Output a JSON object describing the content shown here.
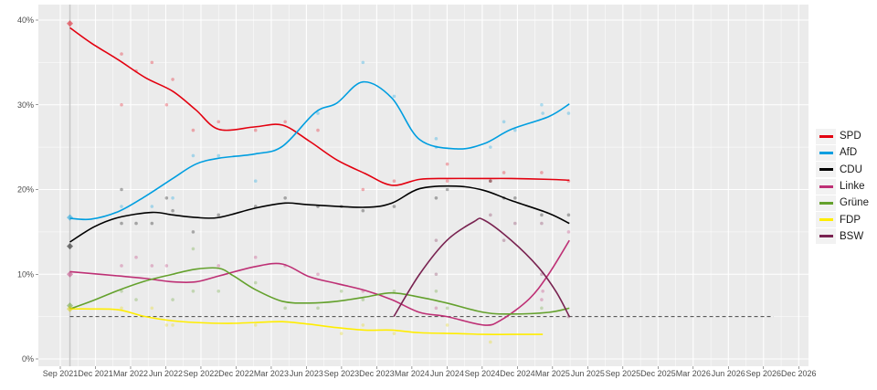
{
  "chart_data": {
    "type": "line",
    "title": "",
    "xlabel": "",
    "ylabel": "",
    "ylim": [
      0,
      40
    ],
    "y_ticks": [
      "0%",
      "10%",
      "20%",
      "30%",
      "40%"
    ],
    "x_ticks": [
      "Sep 2021",
      "Dec 2021",
      "Mar 2022",
      "Jun 2022",
      "Sep 2022",
      "Dec 2022",
      "Mar 2023",
      "Jun 2023",
      "Sep 2023",
      "Dec 2023",
      "Mar 2024",
      "Jun 2024",
      "Sep 2024",
      "Dec 2024",
      "Mar 2025",
      "Jun 2025",
      "Sep 2025",
      "Dec 2025",
      "Mar 2026",
      "Jun 2026",
      "Sep 2026",
      "Dec 2026"
    ],
    "xlim": [
      "2021-08-07",
      "2027-01-10"
    ],
    "grid": true,
    "legend_position": "right",
    "election_marker_date": "2021-09-26",
    "threshold": {
      "value": 5,
      "from": "2021-09-26",
      "to": "2026-09-27",
      "style": "dashed"
    },
    "series": [
      {
        "name": "SPD",
        "color": "#e3000f",
        "election_result": 39.6,
        "trend": [
          [
            "2021-09-26",
            39.1
          ],
          [
            "2021-11-20",
            37.3
          ],
          [
            "2022-01-30",
            35.3
          ],
          [
            "2022-04-10",
            33.2
          ],
          [
            "2022-06-20",
            31.6
          ],
          [
            "2022-08-19",
            29.4
          ],
          [
            "2022-10-18",
            27.1
          ],
          [
            "2023-01-20",
            27.4
          ],
          [
            "2023-04-01",
            27.6
          ],
          [
            "2023-06-10",
            25.7
          ],
          [
            "2023-08-20",
            23.5
          ],
          [
            "2023-11-01",
            21.9
          ],
          [
            "2024-01-10",
            20.5
          ],
          [
            "2024-03-22",
            21.2
          ],
          [
            "2024-06-01",
            21.3
          ],
          [
            "2024-09-05",
            21.3
          ],
          [
            "2024-11-15",
            21.3
          ],
          [
            "2025-02-20",
            21.2
          ],
          [
            "2025-04-15",
            21.1
          ]
        ],
        "polls": [
          [
            "2022-02-07",
            36
          ],
          [
            "2022-03-17",
            34
          ],
          [
            "2022-04-27",
            35
          ],
          [
            "2022-06-20",
            33
          ],
          [
            "2022-02-07",
            30
          ],
          [
            "2022-06-04",
            30
          ],
          [
            "2022-08-12",
            27
          ],
          [
            "2022-10-17",
            28
          ],
          [
            "2023-01-21",
            27
          ],
          [
            "2023-04-08",
            28
          ],
          [
            "2023-07-02",
            27
          ],
          [
            "2023-10-27",
            20
          ],
          [
            "2024-01-16",
            21
          ],
          [
            "2024-06-02",
            23
          ],
          [
            "2024-06-02",
            21
          ],
          [
            "2024-09-22",
            21
          ],
          [
            "2024-10-27",
            22
          ],
          [
            "2025-02-02",
            22
          ],
          [
            "2025-04-13",
            21
          ]
        ]
      },
      {
        "name": "AfD",
        "color": "#009ee0",
        "election_result": 16.7,
        "trend": [
          [
            "2021-09-26",
            16.6
          ],
          [
            "2021-11-20",
            16.5
          ],
          [
            "2022-01-30",
            17.4
          ],
          [
            "2022-04-10",
            19.2
          ],
          [
            "2022-06-20",
            21.3
          ],
          [
            "2022-08-19",
            23.0
          ],
          [
            "2022-10-18",
            23.7
          ],
          [
            "2023-01-20",
            24.2
          ],
          [
            "2023-04-01",
            25.1
          ],
          [
            "2023-06-25",
            29.1
          ],
          [
            "2023-08-20",
            30.2
          ],
          [
            "2023-10-27",
            32.7
          ],
          [
            "2024-01-10",
            30.8
          ],
          [
            "2024-03-22",
            25.9
          ],
          [
            "2024-06-25",
            24.8
          ],
          [
            "2024-09-05",
            25.4
          ],
          [
            "2024-11-15",
            27.1
          ],
          [
            "2025-02-20",
            28.6
          ],
          [
            "2025-04-15",
            30.1
          ]
        ],
        "polls": [
          [
            "2022-02-07",
            18
          ],
          [
            "2022-04-27",
            18
          ],
          [
            "2022-06-20",
            19
          ],
          [
            "2022-08-12",
            24
          ],
          [
            "2022-10-17",
            24
          ],
          [
            "2023-01-21",
            21
          ],
          [
            "2023-07-02",
            29
          ],
          [
            "2023-10-27",
            35
          ],
          [
            "2024-01-16",
            31
          ],
          [
            "2024-05-04",
            26
          ],
          [
            "2024-05-04",
            25
          ],
          [
            "2024-09-22",
            25
          ],
          [
            "2024-10-27",
            28
          ],
          [
            "2024-11-25",
            27
          ],
          [
            "2025-02-02",
            30
          ],
          [
            "2025-02-05",
            29
          ],
          [
            "2025-04-13",
            29
          ]
        ]
      },
      {
        "name": "CDU",
        "color": "#000000",
        "election_result": 13.3,
        "trend": [
          [
            "2021-09-26",
            13.8
          ],
          [
            "2021-11-28",
            15.6
          ],
          [
            "2022-01-30",
            16.7
          ],
          [
            "2022-04-27",
            17.3
          ],
          [
            "2022-06-20",
            17.0
          ],
          [
            "2022-08-19",
            16.7
          ],
          [
            "2022-10-18",
            16.7
          ],
          [
            "2023-01-20",
            17.8
          ],
          [
            "2023-04-08",
            18.4
          ],
          [
            "2023-06-10",
            18.2
          ],
          [
            "2023-11-01",
            17.9
          ],
          [
            "2024-01-10",
            18.4
          ],
          [
            "2024-03-22",
            20.1
          ],
          [
            "2024-06-25",
            20.4
          ],
          [
            "2024-09-05",
            19.9
          ],
          [
            "2024-11-15",
            18.7
          ],
          [
            "2025-02-20",
            17.2
          ],
          [
            "2025-04-15",
            16.0
          ]
        ],
        "polls": [
          [
            "2022-02-07",
            20
          ],
          [
            "2022-02-07",
            16
          ],
          [
            "2022-03-17",
            16
          ],
          [
            "2022-04-27",
            16
          ],
          [
            "2022-06-04",
            19
          ],
          [
            "2022-06-20",
            17.5
          ],
          [
            "2022-08-12",
            15
          ],
          [
            "2022-10-17",
            17
          ],
          [
            "2023-01-21",
            18
          ],
          [
            "2023-04-08",
            19
          ],
          [
            "2023-07-02",
            18
          ],
          [
            "2023-09-01",
            18
          ],
          [
            "2023-10-27",
            17.5
          ],
          [
            "2024-01-16",
            18
          ],
          [
            "2024-05-04",
            19
          ],
          [
            "2024-06-02",
            20
          ],
          [
            "2024-09-22",
            21
          ],
          [
            "2024-10-27",
            19
          ],
          [
            "2024-11-25",
            19
          ],
          [
            "2025-02-02",
            17
          ],
          [
            "2025-04-13",
            17
          ]
        ]
      },
      {
        "name": "Linke",
        "color": "#be3075",
        "election_result": 10.0,
        "trend": [
          [
            "2021-09-26",
            10.3
          ],
          [
            "2022-01-30",
            9.8
          ],
          [
            "2022-04-10",
            9.5
          ],
          [
            "2022-06-20",
            9.1
          ],
          [
            "2022-08-19",
            9.1
          ],
          [
            "2022-10-18",
            9.8
          ],
          [
            "2023-01-20",
            10.9
          ],
          [
            "2023-04-01",
            11.2
          ],
          [
            "2023-06-10",
            9.7
          ],
          [
            "2023-08-20",
            8.9
          ],
          [
            "2023-11-01",
            8.1
          ],
          [
            "2024-01-10",
            7.0
          ],
          [
            "2024-03-22",
            5.5
          ],
          [
            "2024-06-01",
            5.0
          ],
          [
            "2024-09-05",
            4.0
          ],
          [
            "2024-10-20",
            4.6
          ],
          [
            "2025-01-01",
            7.1
          ],
          [
            "2025-02-20",
            10.0
          ],
          [
            "2025-04-15",
            14.0
          ]
        ],
        "polls": [
          [
            "2022-02-07",
            11
          ],
          [
            "2022-03-17",
            12
          ],
          [
            "2022-04-27",
            11
          ],
          [
            "2022-06-04",
            11
          ],
          [
            "2022-10-17",
            11
          ],
          [
            "2023-01-21",
            12
          ],
          [
            "2023-04-08",
            11
          ],
          [
            "2023-07-02",
            10
          ],
          [
            "2023-10-27",
            8
          ],
          [
            "2024-05-04",
            6
          ],
          [
            "2025-02-02",
            7
          ],
          [
            "2025-02-05",
            8
          ],
          [
            "2025-04-13",
            15
          ]
        ]
      },
      {
        "name": "Grüne",
        "color": "#64a12d",
        "election_result": 6.3,
        "trend": [
          [
            "2021-09-26",
            5.9
          ],
          [
            "2021-11-20",
            6.8
          ],
          [
            "2022-01-30",
            8.1
          ],
          [
            "2022-04-10",
            9.2
          ],
          [
            "2022-06-20",
            10.0
          ],
          [
            "2022-08-19",
            10.6
          ],
          [
            "2022-10-18",
            10.7
          ],
          [
            "2022-11-25",
            9.8
          ],
          [
            "2023-01-20",
            8.2
          ],
          [
            "2023-04-01",
            6.8
          ],
          [
            "2023-06-10",
            6.6
          ],
          [
            "2023-08-20",
            6.8
          ],
          [
            "2023-11-01",
            7.3
          ],
          [
            "2024-01-10",
            7.8
          ],
          [
            "2024-03-22",
            7.3
          ],
          [
            "2024-06-01",
            6.6
          ],
          [
            "2024-09-05",
            5.5
          ],
          [
            "2024-11-15",
            5.3
          ],
          [
            "2025-02-20",
            5.5
          ],
          [
            "2025-04-15",
            6.0
          ]
        ],
        "polls": [
          [
            "2022-02-07",
            8
          ],
          [
            "2022-03-17",
            7
          ],
          [
            "2022-06-20",
            7
          ],
          [
            "2022-08-12",
            8
          ],
          [
            "2022-08-12",
            13
          ],
          [
            "2022-10-17",
            8
          ],
          [
            "2023-01-21",
            9
          ],
          [
            "2023-04-08",
            6
          ],
          [
            "2023-07-02",
            6
          ],
          [
            "2023-09-01",
            8
          ],
          [
            "2023-10-27",
            7
          ],
          [
            "2024-01-16",
            8
          ],
          [
            "2024-05-04",
            8
          ],
          [
            "2024-06-02",
            6
          ],
          [
            "2025-02-02",
            6
          ]
        ]
      },
      {
        "name": "FDP",
        "color": "#ffed00",
        "election_result": 5.9,
        "trend": [
          [
            "2021-09-26",
            5.9
          ],
          [
            "2021-11-20",
            5.9
          ],
          [
            "2022-01-30",
            5.8
          ],
          [
            "2022-04-10",
            5.0
          ],
          [
            "2022-06-20",
            4.5
          ],
          [
            "2022-08-19",
            4.3
          ],
          [
            "2022-11-10",
            4.2
          ],
          [
            "2023-01-20",
            4.3
          ],
          [
            "2023-04-01",
            4.4
          ],
          [
            "2023-06-10",
            4.1
          ],
          [
            "2023-08-20",
            3.7
          ],
          [
            "2023-11-01",
            3.4
          ],
          [
            "2024-01-10",
            3.4
          ],
          [
            "2024-03-22",
            3.1
          ],
          [
            "2024-06-25",
            3.0
          ],
          [
            "2024-09-05",
            2.9
          ],
          [
            "2024-11-15",
            2.9
          ],
          [
            "2025-02-05",
            2.9
          ]
        ],
        "polls": [
          [
            "2022-02-07",
            6
          ],
          [
            "2022-04-27",
            6
          ],
          [
            "2022-06-04",
            4
          ],
          [
            "2022-06-20",
            4
          ],
          [
            "2023-01-21",
            4
          ],
          [
            "2023-09-01",
            3
          ],
          [
            "2023-10-27",
            4
          ],
          [
            "2024-01-16",
            3
          ],
          [
            "2024-06-02",
            4
          ],
          [
            "2024-09-22",
            2
          ]
        ]
      },
      {
        "name": "BSW",
        "color": "#792351",
        "trend": [
          [
            "2024-01-15",
            5.0
          ],
          [
            "2024-03-22",
            10.0
          ],
          [
            "2024-06-01",
            14.0
          ],
          [
            "2024-08-10",
            16.2
          ],
          [
            "2024-09-05",
            16.4
          ],
          [
            "2024-11-15",
            14.0
          ],
          [
            "2025-01-25",
            10.8
          ],
          [
            "2025-03-12",
            7.9
          ],
          [
            "2025-04-15",
            5.0
          ]
        ],
        "polls": [
          [
            "2024-05-04",
            14
          ],
          [
            "2024-05-04",
            10
          ],
          [
            "2024-09-22",
            17
          ],
          [
            "2024-10-27",
            14
          ],
          [
            "2024-11-25",
            16
          ],
          [
            "2025-02-02",
            16
          ],
          [
            "2025-02-02",
            10
          ],
          [
            "2025-04-13",
            5
          ]
        ]
      }
    ]
  }
}
